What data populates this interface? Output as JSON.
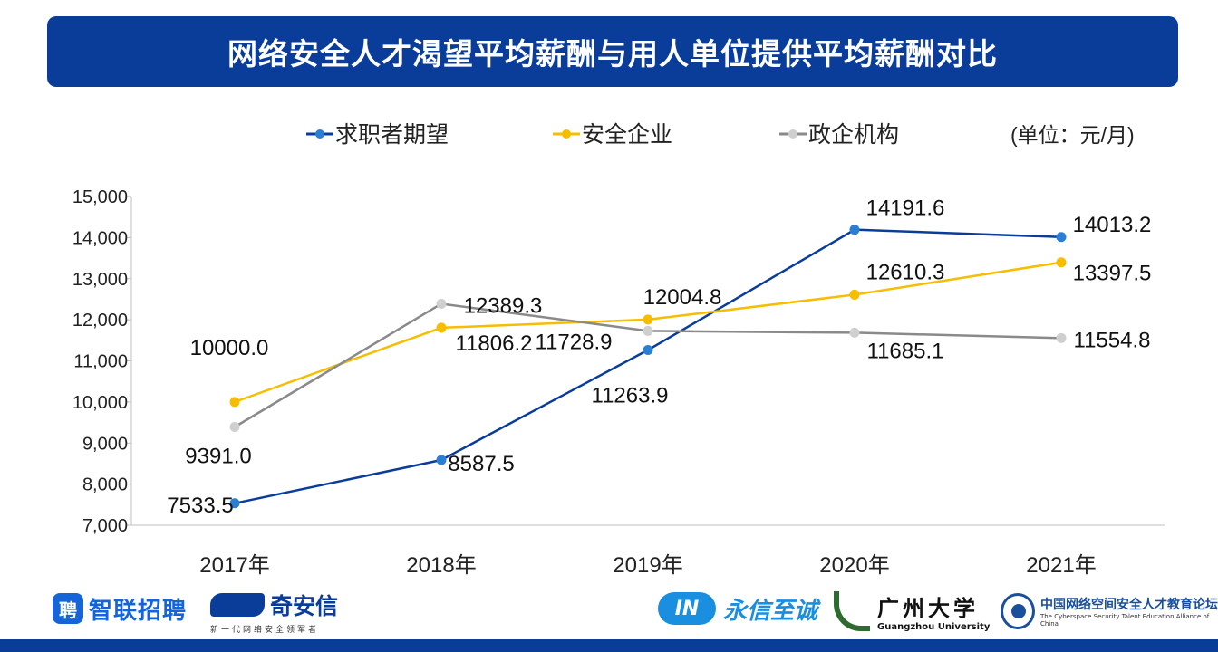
{
  "title": "网络安全人才渴望平均薪酬与用人单位提供平均薪酬对比",
  "unit_note": "(单位：元/月)",
  "chart_data": {
    "type": "line",
    "x": [
      "2017年",
      "2018年",
      "2019年",
      "2020年",
      "2021年"
    ],
    "ylim": [
      7000,
      15000
    ],
    "yticks": [
      7000,
      8000,
      9000,
      10000,
      11000,
      12000,
      13000,
      14000,
      15000
    ],
    "ytick_labels": [
      "7,000",
      "8,000",
      "9,000",
      "10,000",
      "11,000",
      "12,000",
      "13,000",
      "14,000",
      "15,000"
    ],
    "grid": false,
    "legend_position": "top",
    "series": [
      {
        "name": "求职者期望",
        "color": "#0a3c9a",
        "marker_color": "#2a7fd4",
        "values": [
          7533.5,
          8587.5,
          11263.9,
          14191.6,
          14013.2
        ],
        "labels": [
          "7533.5",
          "8587.5",
          "11263.9",
          "14191.6",
          "14013.2"
        ]
      },
      {
        "name": "安全企业",
        "color": "#f7bd00",
        "marker_color": "#f7bd00",
        "values": [
          10000.0,
          11806.2,
          12004.8,
          12610.3,
          13397.5
        ],
        "labels": [
          "10000.0",
          "11806.2",
          "12004.8",
          "12610.3",
          "13397.5"
        ]
      },
      {
        "name": "政企机构",
        "color": "#8a8a8a",
        "marker_color": "#cfcfcf",
        "values": [
          9391.0,
          12389.3,
          11728.9,
          11685.1,
          11554.8
        ],
        "labels": [
          "9391.0",
          "12389.3",
          "11728.9",
          "11685.1",
          "11554.8"
        ]
      }
    ]
  },
  "logos": {
    "zhilian": {
      "badge": "聘",
      "text": "智联招聘"
    },
    "qianxin": {
      "text": "奇安信",
      "sub": "新一代网络安全领军者"
    },
    "yongxin": {
      "badge": "IN",
      "text": "永信至诚"
    },
    "gzhu": {
      "text": "广州大学",
      "sub": "Guangzhou University"
    },
    "alliance": {
      "text": "中国网络空间安全人才教育论坛",
      "sub": "The Cyberspace Security Talent Education Alliance of China"
    }
  }
}
